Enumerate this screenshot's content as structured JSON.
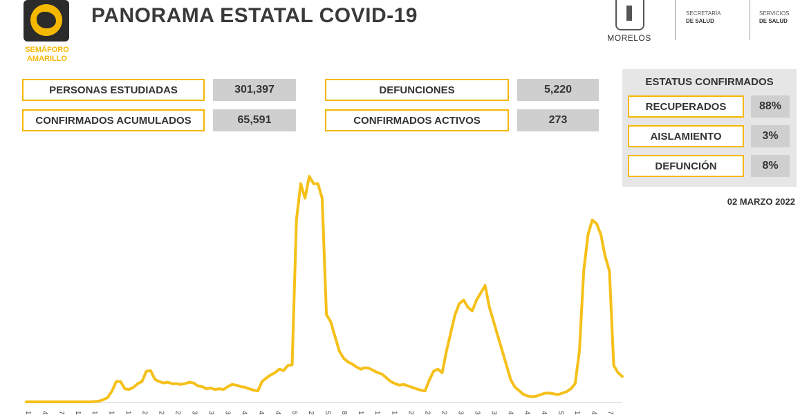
{
  "header": {
    "semaforo_line1": "SEMÁFORO",
    "semaforo_line2": "AMARILLO",
    "title": "PANORAMA ESTATAL COVID-19",
    "government": "MORELOS",
    "agency1_line1": "SECRETARÍA",
    "agency1_line2": "DE SALUD",
    "agency2_line1": "SERVICIOS",
    "agency2_line2": "DE SALUD"
  },
  "stats": {
    "personas_label": "PERSONAS ESTUDIADAS",
    "personas_value": "301,397",
    "confirmados_label": "CONFIRMADOS ACUMULADOS",
    "confirmados_value": "65,591",
    "defunciones_label": "DEFUNCIONES",
    "defunciones_value": "5,220",
    "activos_label": "CONFIRMADOS ACTIVOS",
    "activos_value": "273"
  },
  "status": {
    "title": "ESTATUS CONFIRMADOS",
    "items": [
      {
        "label": "RECUPERADOS",
        "value": "88%"
      },
      {
        "label": "AISLAMIENTO",
        "value": "3%"
      },
      {
        "label": "DEFUNCIÓN",
        "value": "8%"
      }
    ]
  },
  "date": "02 MARZO 2022",
  "colors": {
    "accent": "#f5b800",
    "line": "#f5c019",
    "value_bg": "#cfcfcf",
    "panel_bg": "#e6e6e6"
  },
  "chart_data": {
    "type": "line",
    "title": "",
    "xlabel": "",
    "ylabel": "",
    "grid": false,
    "x_tick_labels": [
      "1",
      "4",
      "7",
      "1",
      "1",
      "1",
      "1",
      "2",
      "2",
      "2",
      "3",
      "3",
      "3",
      "4",
      "4",
      "4",
      "5",
      "2",
      "5",
      "8",
      "1",
      "1",
      "1",
      "2",
      "2",
      "2",
      "3",
      "3",
      "3",
      "4",
      "4",
      "4",
      "5",
      "1",
      "4",
      "7"
    ],
    "series": [
      {
        "values": [
          0,
          0,
          0,
          0,
          0,
          0,
          0,
          0,
          0,
          0,
          0,
          0,
          0,
          0,
          0,
          0,
          0.5,
          1,
          3,
          6,
          15,
          28,
          28,
          18,
          17,
          20,
          25,
          28,
          42,
          43,
          31,
          28,
          26,
          27,
          25,
          25,
          24,
          25,
          27,
          26,
          22,
          21,
          18,
          19,
          17,
          18,
          17,
          21,
          24,
          23,
          21,
          20,
          18,
          16,
          15,
          28,
          33,
          37,
          40,
          45,
          43,
          50,
          51,
          250,
          300,
          280,
          310,
          300,
          300,
          280,
          120,
          110,
          90,
          70,
          60,
          55,
          52,
          48,
          45,
          47,
          46,
          43,
          40,
          38,
          33,
          28,
          25,
          23,
          24,
          22,
          20,
          18,
          16,
          15,
          30,
          42,
          45,
          40,
          70,
          95,
          120,
          135,
          140,
          130,
          125,
          140,
          150,
          160,
          130,
          110,
          90,
          70,
          50,
          30,
          20,
          15,
          10,
          8,
          7,
          8,
          10,
          12,
          12,
          11,
          10,
          12,
          14,
          18,
          25,
          70,
          180,
          230,
          250,
          245,
          230,
          200,
          180,
          50,
          40,
          35
        ]
      }
    ]
  }
}
